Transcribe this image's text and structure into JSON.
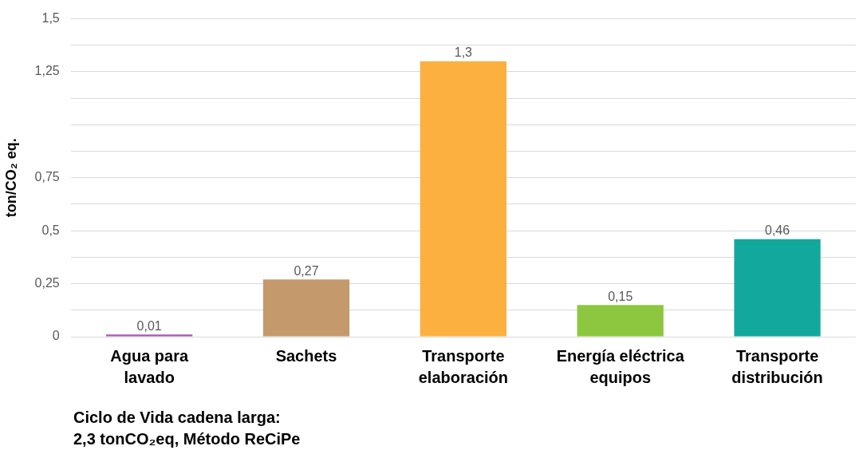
{
  "chart_data": {
    "type": "bar",
    "ylabel": "ton/CO₂ eq.",
    "categories": [
      "Agua para\nlavado",
      "Sachets",
      "Transporte\nelaboración",
      "Energía eléctrica\nequipos",
      "Transporte\ndistribución"
    ],
    "values": [
      0.01,
      0.27,
      1.3,
      0.15,
      0.46
    ],
    "colors": [
      "#a955b0",
      "#c49a6c",
      "#fbb040",
      "#8dc63f",
      "#13a89e"
    ],
    "value_labels": [
      "0,01",
      "0,27",
      "1,3",
      "0,15",
      "0,46"
    ],
    "ylim": [
      0,
      1.5
    ],
    "yticks": [
      {
        "value": 0,
        "label": "0"
      },
      {
        "value": 0.125,
        "label": null
      },
      {
        "value": 0.25,
        "label": "0,25"
      },
      {
        "value": 0.375,
        "label": null
      },
      {
        "value": 0.5,
        "label": "0,5"
      },
      {
        "value": 0.625,
        "label": null
      },
      {
        "value": 0.75,
        "label": "0,75"
      },
      {
        "value": 0.875,
        "label": null
      },
      {
        "value": 1,
        "label": null
      },
      {
        "value": 1.125,
        "label": null
      },
      {
        "value": 1.25,
        "label": "1,25"
      },
      {
        "value": 1.375,
        "label": null
      },
      {
        "value": 1.5,
        "label": "1,5"
      }
    ],
    "grid": "y",
    "annotations": [
      "Ciclo de Vida cadena larga:\n2,3 tonCO₂eq, Método ReCiPe"
    ]
  }
}
